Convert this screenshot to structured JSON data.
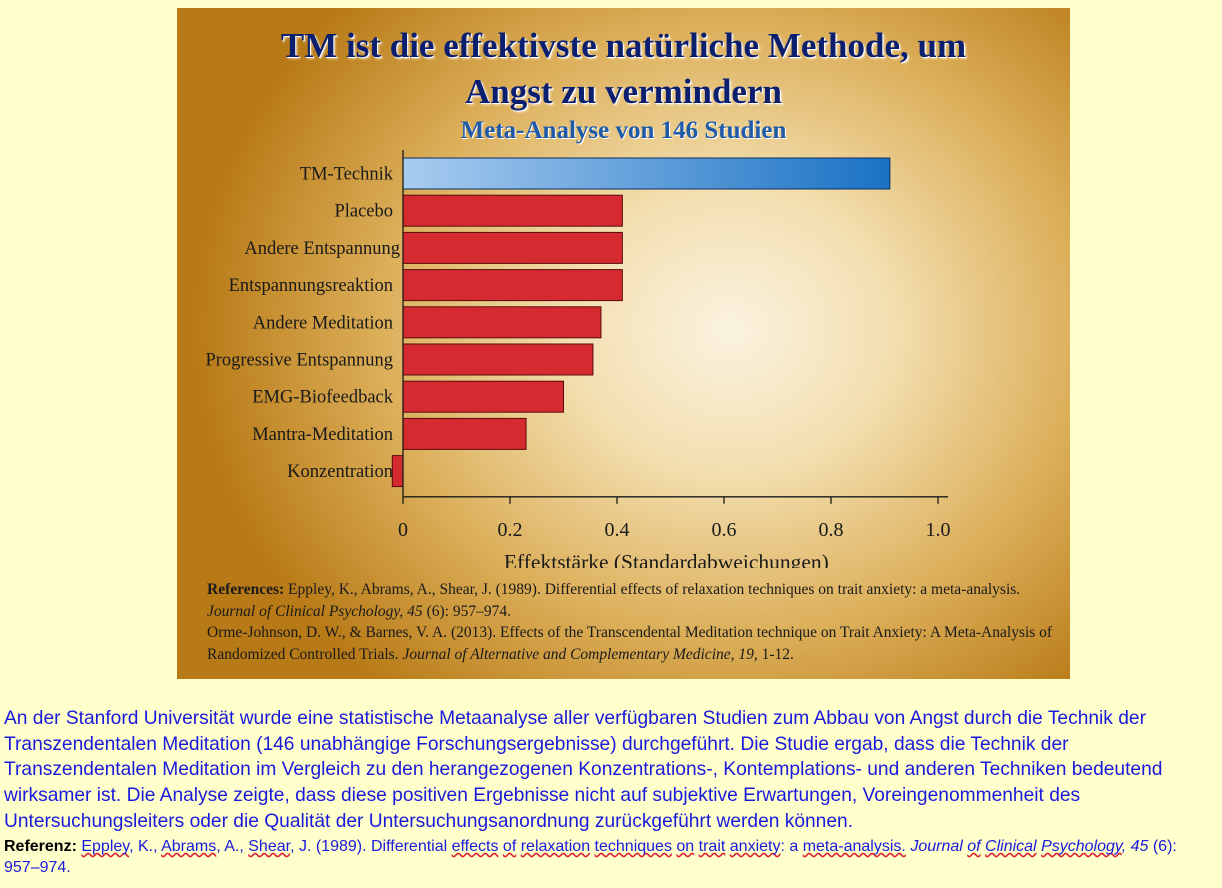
{
  "figure": {
    "title_line1": "TM ist die effektivste natürliche Methode, um",
    "title_line2": "Angst zu vermindern",
    "subtitle": "Meta-Analyse von 146 Studien",
    "references": {
      "label": "References:",
      "ref1_text": " Eppley, K., Abrams, A., Shear, J. (1989). Differential effects of relaxation techniques on trait anxiety: a meta-analysis. ",
      "ref1_journal": "Journal of Clinical Psychology, 45",
      "ref1_tail": " (6): 957–974.",
      "ref2_text": "Orme-Johnson, D. W., & Barnes, V. A. (2013). Effects of the Transcendental Meditation technique on Trait Anxiety: A Meta-Analysis of Randomized Controlled Trials. ",
      "ref2_journal": "Journal of Alternative and Complementary Medicine",
      "ref2_sep": ", ",
      "ref2_volume": "19",
      "ref2_tail": ", 1-12."
    }
  },
  "chart_data": {
    "type": "bar",
    "orientation": "horizontal",
    "categories": [
      "TM-Technik",
      "Placebo",
      "Andere Entspannung",
      "Entspannungsreaktion",
      "Andere Meditation",
      "Progressive Entspannung",
      "EMG-Biofeedback",
      "Mantra-Meditation",
      "Konzentration"
    ],
    "values": [
      0.91,
      0.41,
      0.41,
      0.41,
      0.37,
      0.355,
      0.3,
      0.23,
      -0.02
    ],
    "xlabel": "Effektstärke (Standardabweichungen)",
    "xlim": [
      0,
      1.0
    ],
    "xticks": [
      "0",
      "0.2",
      "0.4",
      "0.6",
      "0.8",
      "1.0"
    ],
    "colors": {
      "highlight": "#1a72c4",
      "highlight_light": "#a8ccf0",
      "bar": "#d42a30",
      "bar_border": "#5a0a0a"
    },
    "grid": false
  },
  "body": {
    "paragraph": "An der Stanford Universität wurde eine statistische Metaanalyse aller verfügbaren Studien zum Abbau von Angst durch die Technik der Transzendentalen Meditation (146 unabhängige Forschungsergebnisse) durchgeführt. Die Studie ergab, dass die Technik der Transzendentalen Meditation im Vergleich zu den herangezogenen Konzentrations-, Kontemplations- und anderen Techniken bedeutend wirksamer ist. Die Analyse zeigte, dass diese positiven Ergebnisse nicht auf subjektive Erwartungen, Voreingenommenheit des Untersuchungsleiters oder die Qualität der Untersuchungsanordnung zurückgeführt werden können."
  },
  "footer_reference": {
    "label": "Referenz:",
    "author1": "Eppley",
    "sep1": ", K., ",
    "author2": "Abrams",
    "sep2": ", A., ",
    "author3": "Shear",
    "text_mid": ", J. (1989). Differential ",
    "w_effects": "effects",
    "sp1": " ",
    "w_of": "of",
    "sp2": " ",
    "w_relaxation": "relaxation",
    "sp3": " ",
    "w_techniques": "techniques",
    "sp4": " ",
    "w_on": "on",
    "sp5": " ",
    "w_trait": "trait",
    "sp6": " ",
    "w_anxiety": "anxiety",
    "text_a": ": a ",
    "w_meta": "meta-analysis.",
    "sp7": " ",
    "journal_a": "Journal ",
    "w_jof": "of",
    "journal_b": " ",
    "w_clinical": "Clinical",
    "sp8": " ",
    "w_psychology": "Psychology",
    "journal_c": ", 45",
    "tail": " (6): 957–974."
  }
}
